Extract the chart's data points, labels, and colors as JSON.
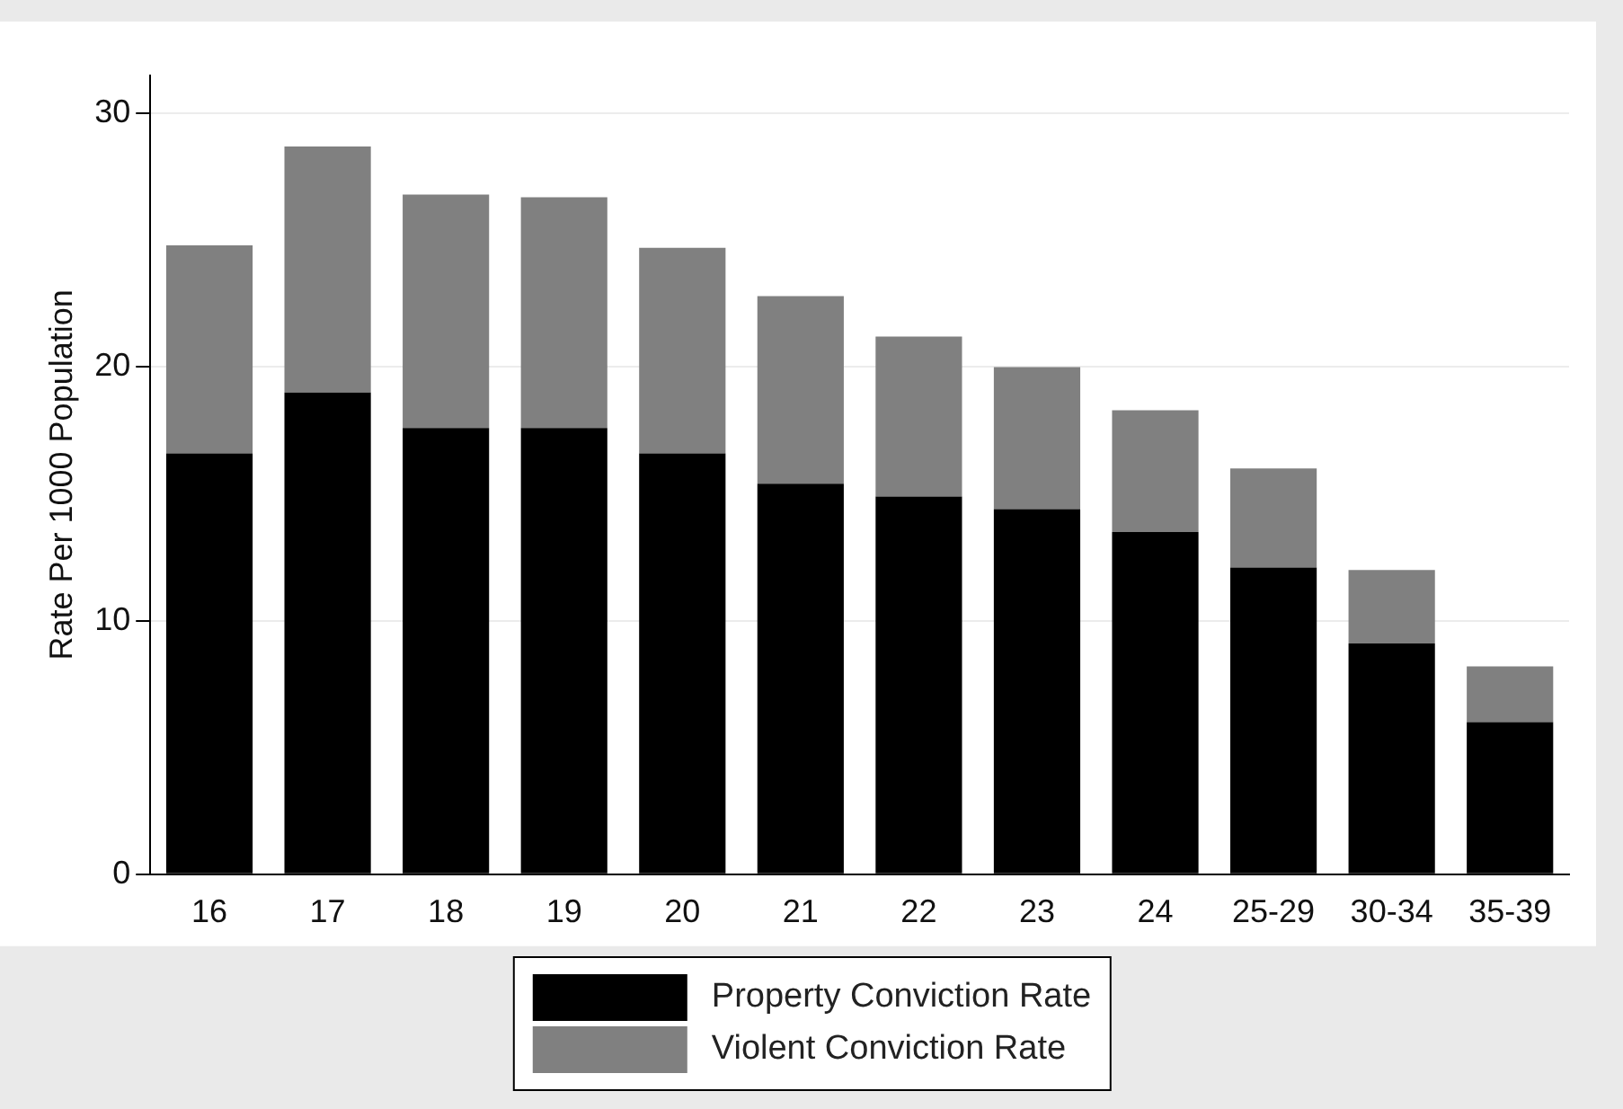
{
  "chart_data": {
    "type": "bar",
    "stacked": true,
    "ylabel": "Rate Per 1000 Population",
    "categories": [
      "16",
      "17",
      "18",
      "19",
      "20",
      "21",
      "22",
      "23",
      "24",
      "25-29",
      "30-34",
      "35-39"
    ],
    "series": [
      {
        "name": "Property Conviction Rate",
        "color": "#000000",
        "values": [
          16.6,
          19.0,
          17.6,
          17.6,
          16.6,
          15.4,
          14.9,
          14.4,
          13.5,
          12.1,
          9.1,
          6.0
        ]
      },
      {
        "name": "Violent Conviction Rate",
        "color": "#808080",
        "values": [
          8.2,
          9.7,
          9.2,
          9.1,
          8.1,
          7.4,
          6.3,
          5.6,
          4.8,
          3.9,
          2.9,
          2.2
        ]
      }
    ],
    "ylim": [
      0,
      31.5
    ],
    "yticks": [
      0,
      10,
      20,
      30
    ],
    "grid": "y",
    "legend": "bottom"
  }
}
